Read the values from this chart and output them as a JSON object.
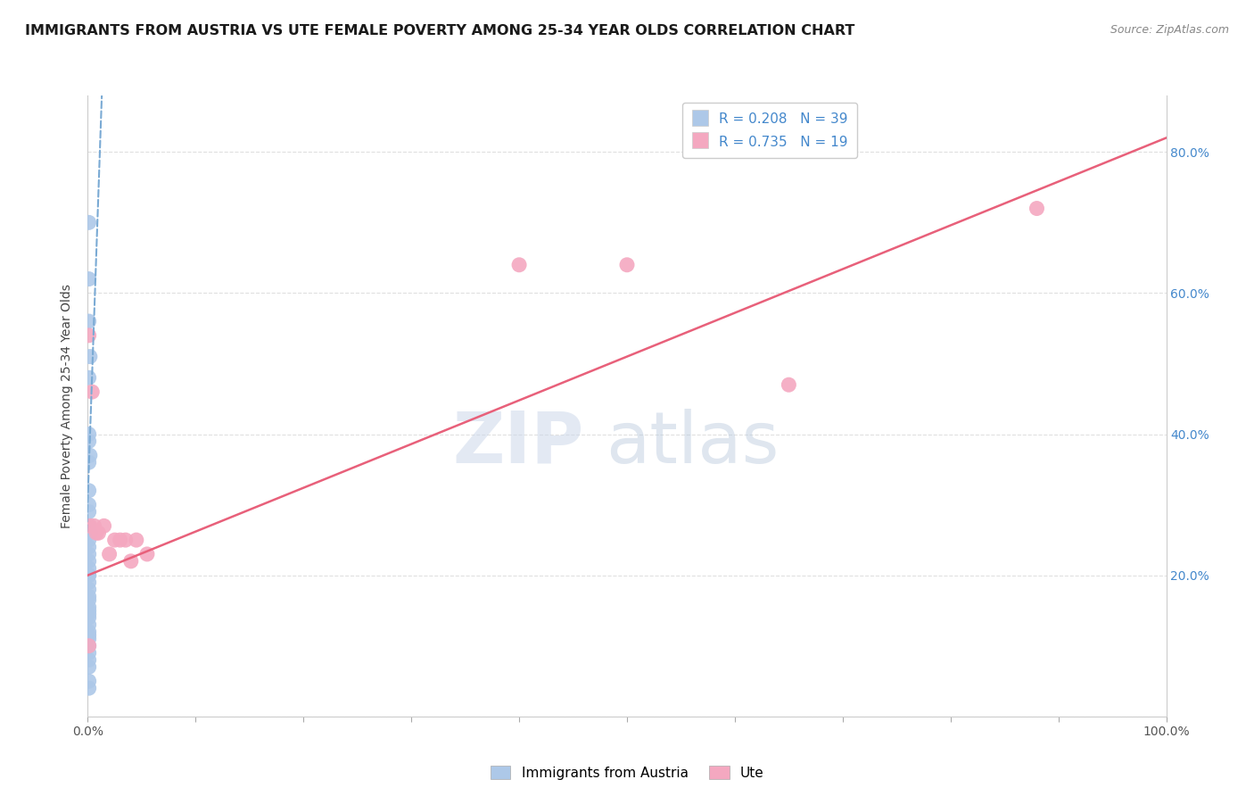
{
  "title": "IMMIGRANTS FROM AUSTRIA VS UTE FEMALE POVERTY AMONG 25-34 YEAR OLDS CORRELATION CHART",
  "source": "Source: ZipAtlas.com",
  "ylabel": "Female Poverty Among 25-34 Year Olds",
  "xlim": [
    0,
    1.0
  ],
  "ylim": [
    0,
    0.88
  ],
  "yticks": [
    0.0,
    0.2,
    0.4,
    0.6,
    0.8
  ],
  "yticklabels": [
    "",
    "20.0%",
    "40.0%",
    "60.0%",
    "80.0%"
  ],
  "legend1_r": "0.208",
  "legend1_n": "39",
  "legend2_r": "0.735",
  "legend2_n": "19",
  "legend1_label": "Immigrants from Austria",
  "legend2_label": "Ute",
  "blue_color": "#adc8e8",
  "pink_color": "#f4a8c0",
  "blue_line_color": "#7aaad4",
  "pink_line_color": "#e8607a",
  "r_n_color": "#4488cc",
  "blue_scatter_x": [
    0.001,
    0.001,
    0.001,
    0.002,
    0.001,
    0.001,
    0.001,
    0.002,
    0.001,
    0.001,
    0.001,
    0.001,
    0.001,
    0.002,
    0.001,
    0.001,
    0.001,
    0.001,
    0.001,
    0.001,
    0.001,
    0.001,
    0.001,
    0.001,
    0.001,
    0.001,
    0.001,
    0.001,
    0.001,
    0.001,
    0.001,
    0.001,
    0.001,
    0.001,
    0.001,
    0.001,
    0.001,
    0.001,
    0.001
  ],
  "blue_scatter_y": [
    0.7,
    0.62,
    0.56,
    0.51,
    0.48,
    0.4,
    0.39,
    0.37,
    0.36,
    0.32,
    0.3,
    0.29,
    0.27,
    0.26,
    0.25,
    0.24,
    0.23,
    0.22,
    0.21,
    0.2,
    0.2,
    0.19,
    0.18,
    0.17,
    0.165,
    0.155,
    0.15,
    0.145,
    0.14,
    0.13,
    0.12,
    0.115,
    0.11,
    0.1,
    0.09,
    0.08,
    0.07,
    0.05,
    0.04
  ],
  "pink_scatter_x": [
    0.001,
    0.002,
    0.004,
    0.006,
    0.008,
    0.01,
    0.015,
    0.02,
    0.025,
    0.03,
    0.035,
    0.04,
    0.045,
    0.055,
    0.4,
    0.5,
    0.65,
    0.88,
    0.001
  ],
  "pink_scatter_y": [
    0.54,
    0.27,
    0.46,
    0.27,
    0.26,
    0.26,
    0.27,
    0.23,
    0.25,
    0.25,
    0.25,
    0.22,
    0.25,
    0.23,
    0.64,
    0.64,
    0.47,
    0.72,
    0.1
  ],
  "blue_trend_x": [
    -0.002,
    0.013
  ],
  "blue_trend_y": [
    0.22,
    0.88
  ],
  "pink_trend_x": [
    0.0,
    1.0
  ],
  "pink_trend_y": [
    0.2,
    0.82
  ],
  "background_color": "#ffffff",
  "grid_color": "#e0e0e0",
  "title_fontsize": 11.5,
  "axis_label_fontsize": 10,
  "tick_fontsize": 10,
  "legend_fontsize": 11
}
